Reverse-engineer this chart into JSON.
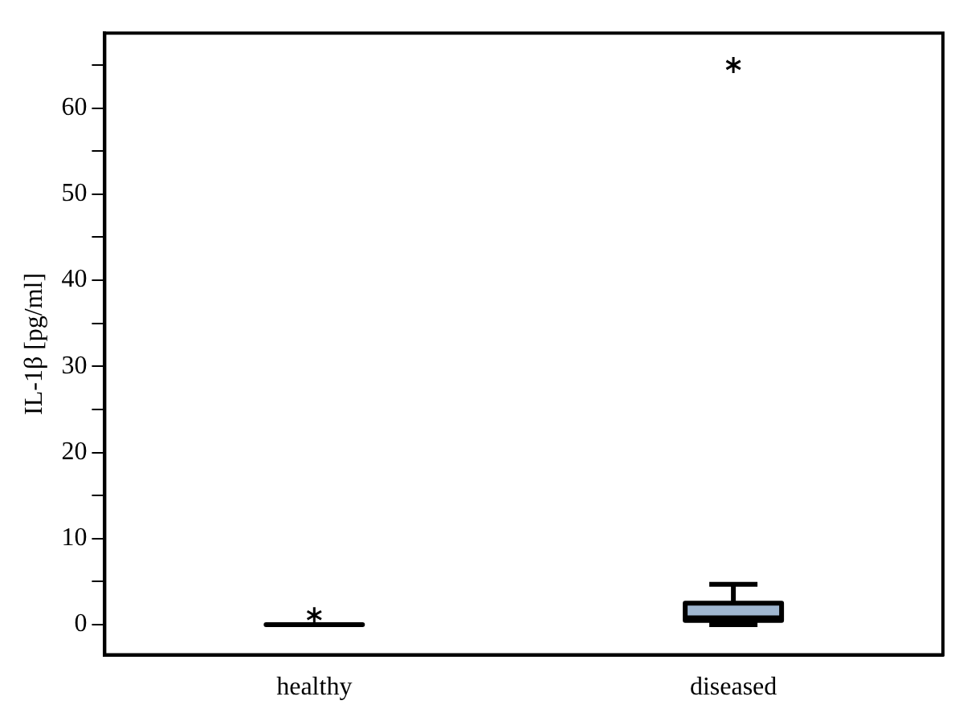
{
  "chart_data": {
    "type": "box",
    "ylabel": "IL-1β [pg/ml]",
    "categories": [
      "healthy",
      "diseased"
    ],
    "boxes": [
      {
        "low": 0,
        "q1": 0,
        "median": 0,
        "q3": 0,
        "high": 0,
        "outliers": [
          1.1
        ]
      },
      {
        "low": 0,
        "q1": 0.5,
        "median": 0.8,
        "q3": 2.5,
        "high": 4.7,
        "outliers": [
          65
        ]
      }
    ],
    "colors": [
      "#000000",
      "#9fb6d0"
    ],
    "marker": "star",
    "grid": false,
    "ylim": [
      -3.5,
      68.7
    ],
    "yticks": [
      0,
      {
        "value": 5,
        "label": null
      },
      10,
      {
        "value": 15,
        "label": null
      },
      20,
      {
        "value": 25,
        "label": null
      },
      30,
      {
        "value": 35,
        "label": null
      },
      40,
      {
        "value": 45,
        "label": null
      },
      50,
      {
        "value": 55,
        "label": null
      },
      60,
      {
        "value": 65,
        "label": null
      }
    ]
  }
}
